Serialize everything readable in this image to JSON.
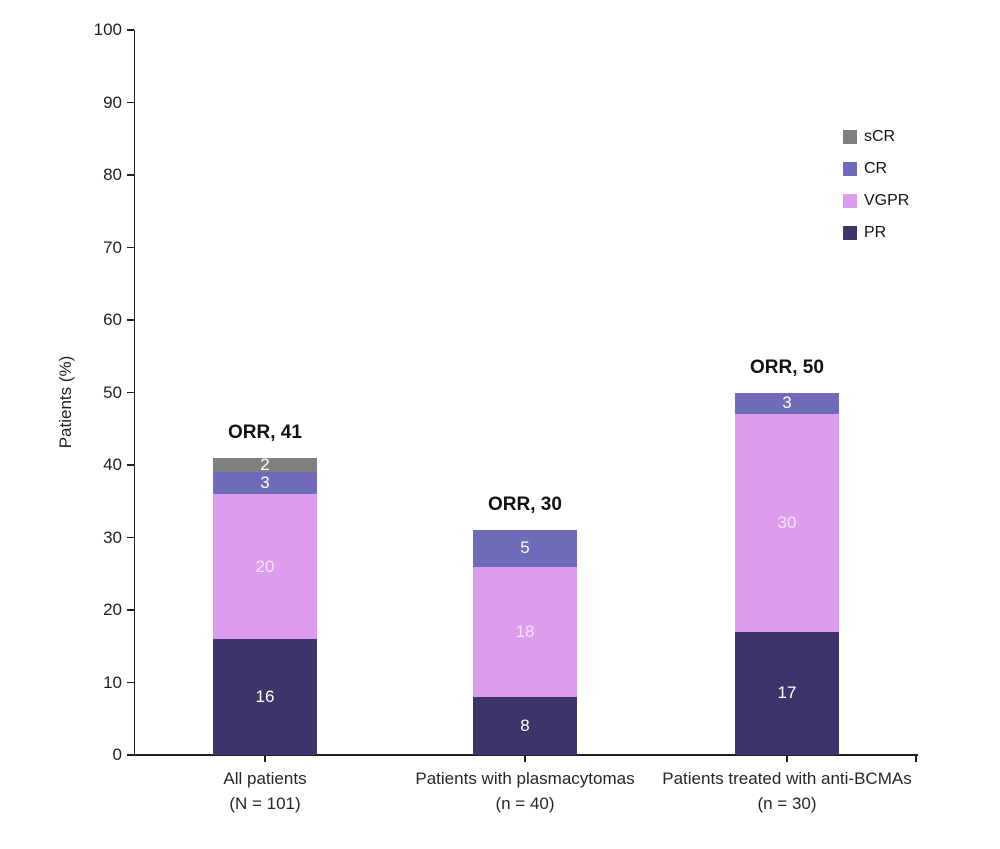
{
  "chart_data": {
    "type": "bar",
    "stacked": true,
    "title": "",
    "ylabel": "Patients (%)",
    "xlabel": "",
    "ylim": [
      0,
      100
    ],
    "yticks": [
      0,
      10,
      20,
      30,
      40,
      50,
      60,
      70,
      80,
      90,
      100
    ],
    "grid": false,
    "legend_position": "top-right",
    "legend_order": [
      "sCR",
      "CR",
      "VGPR",
      "PR"
    ],
    "categories": [
      {
        "label": "All patients",
        "sublabel": "(N = 101)"
      },
      {
        "label": "Patients with plasmacytomas",
        "sublabel": "(n = 40)"
      },
      {
        "label": "Patients treated with anti-BCMAs",
        "sublabel": "(n = 30)"
      }
    ],
    "series": [
      {
        "name": "PR",
        "color": "#3c3569",
        "label_color": "#ffffff",
        "values": [
          16,
          8,
          17
        ]
      },
      {
        "name": "VGPR",
        "color": "#de9dec",
        "label_color": "#f6e4fa",
        "values": [
          20,
          18,
          30
        ]
      },
      {
        "name": "CR",
        "color": "#6f6aba",
        "label_color": "#ffffff",
        "values": [
          3,
          5,
          3
        ]
      },
      {
        "name": "sCR",
        "color": "#7f7f7f",
        "label_color": "#ffffff",
        "values": [
          2,
          0,
          0
        ]
      }
    ],
    "annotations": [
      "ORR, 41",
      "ORR, 30",
      "ORR, 50"
    ],
    "colors": {
      "axis": "#1f1f1f",
      "annotation_text": "#111111"
    }
  }
}
